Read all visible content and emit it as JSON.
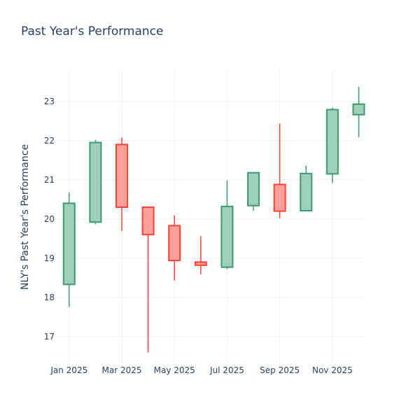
{
  "chart_data": {
    "type": "candlestick",
    "title": "Past Year's Performance",
    "xlabel": "",
    "ylabel": "NLY's Past Year's Performance",
    "ylim": [
      16.3,
      23.8
    ],
    "yticks": [
      17,
      18,
      19,
      20,
      21,
      22,
      23
    ],
    "xlim": [
      -0.5,
      11.2
    ],
    "xticks": [
      {
        "pos": 0,
        "label": "Jan 2025"
      },
      {
        "pos": 2,
        "label": "Mar 2025"
      },
      {
        "pos": 4,
        "label": "May 2025"
      },
      {
        "pos": 6,
        "label": "Jul 2025"
      },
      {
        "pos": 8,
        "label": "Sep 2025"
      },
      {
        "pos": 10,
        "label": "Nov 2025"
      }
    ],
    "increasing_color": "#3d9970",
    "increasing_fill": "#9ecfb8",
    "decreasing_color": "#ff4136",
    "decreasing_fill": "#ffa09b",
    "candles": [
      {
        "month": "Jan 2025",
        "open": 18.33,
        "high": 20.67,
        "low": 17.76,
        "close": 20.4
      },
      {
        "month": "Feb 2025",
        "open": 19.92,
        "high": 22.02,
        "low": 19.86,
        "close": 21.95
      },
      {
        "month": "Mar 2025",
        "open": 21.9,
        "high": 22.08,
        "low": 19.69,
        "close": 20.3
      },
      {
        "month": "Apr 2025",
        "open": 20.3,
        "high": 20.3,
        "low": 16.6,
        "close": 19.6
      },
      {
        "month": "May 2025",
        "open": 19.83,
        "high": 20.09,
        "low": 18.43,
        "close": 18.94
      },
      {
        "month": "Jun 2025",
        "open": 18.9,
        "high": 19.56,
        "low": 18.59,
        "close": 18.82
      },
      {
        "month": "Jul 2025",
        "open": 18.77,
        "high": 20.98,
        "low": 18.72,
        "close": 20.32
      },
      {
        "month": "Aug 2025",
        "open": 20.34,
        "high": 21.19,
        "low": 20.21,
        "close": 21.18
      },
      {
        "month": "Sep 2025",
        "open": 20.88,
        "high": 22.43,
        "low": 20.02,
        "close": 20.2
      },
      {
        "month": "Oct 2025",
        "open": 20.21,
        "high": 21.36,
        "low": 20.21,
        "close": 21.16
      },
      {
        "month": "Nov 2025",
        "open": 21.15,
        "high": 22.84,
        "low": 20.92,
        "close": 22.79
      },
      {
        "month": "Dec 2025",
        "open": 22.66,
        "high": 23.37,
        "low": 22.09,
        "close": 22.93
      }
    ]
  }
}
